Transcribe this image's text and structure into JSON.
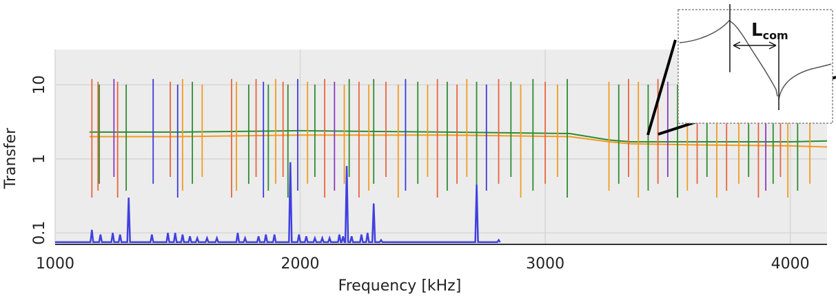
{
  "chart_data": {
    "type": "line",
    "title": "",
    "xlabel": "Frequency [kHz]",
    "ylabel": "Transfer",
    "xlim": [
      1000,
      4150
    ],
    "ylim": [
      0.07,
      30
    ],
    "yscale": "log",
    "grid": true,
    "x_ticks": [
      {
        "value": 1000,
        "label": "1000"
      },
      {
        "value": 2000,
        "label": "2000"
      },
      {
        "value": 3000,
        "label": "3000"
      },
      {
        "value": 4000,
        "label": "4000"
      }
    ],
    "y_ticks": [
      {
        "value": 10,
        "label": "10"
      },
      {
        "value": 1,
        "label": "1"
      },
      {
        "value": 0.1,
        "label": "0.1"
      }
    ],
    "baselines": [
      {
        "name": "",
        "color": "#f29a1f",
        "points": [
          [
            1140,
            2.0
          ],
          [
            1500,
            2.0
          ],
          [
            2000,
            2.1
          ],
          [
            2600,
            2.1
          ],
          [
            3100,
            2.0
          ],
          [
            3260,
            1.7
          ],
          [
            3350,
            1.6
          ],
          [
            3600,
            1.55
          ],
          [
            4000,
            1.5
          ],
          [
            4150,
            1.45
          ]
        ]
      },
      {
        "name": "",
        "color": "#2e8b2e",
        "points": [
          [
            1140,
            2.3
          ],
          [
            1500,
            2.3
          ],
          [
            2000,
            2.4
          ],
          [
            2600,
            2.3
          ],
          [
            3100,
            2.2
          ],
          [
            3260,
            1.8
          ],
          [
            3350,
            1.7
          ],
          [
            3600,
            1.7
          ],
          [
            4000,
            1.7
          ],
          [
            4150,
            1.75
          ]
        ]
      }
    ],
    "resonances": [
      {
        "x": 1150,
        "color": "#e8643c"
      },
      {
        "x": 1175,
        "color": "#e8643c"
      },
      {
        "x": 1180,
        "color": "#2e8b2e"
      },
      {
        "x": 1240,
        "color": "#8a3ab9"
      },
      {
        "x": 1255,
        "color": "#e8643c"
      },
      {
        "x": 1290,
        "color": "#2e8b2e"
      },
      {
        "x": 1400,
        "color": "#3b3bd9"
      },
      {
        "x": 1470,
        "color": "#e8643c"
      },
      {
        "x": 1500,
        "color": "#3b3bd9"
      },
      {
        "x": 1520,
        "color": "#f29a1f"
      },
      {
        "x": 1560,
        "color": "#2e8b2e"
      },
      {
        "x": 1600,
        "color": "#f29a1f"
      },
      {
        "x": 1720,
        "color": "#e8643c"
      },
      {
        "x": 1740,
        "color": "#f29a1f"
      },
      {
        "x": 1790,
        "color": "#2e8b2e"
      },
      {
        "x": 1820,
        "color": "#e8643c"
      },
      {
        "x": 1850,
        "color": "#3b3bd9"
      },
      {
        "x": 1870,
        "color": "#2e8b2e"
      },
      {
        "x": 1900,
        "color": "#f29a1f"
      },
      {
        "x": 1930,
        "color": "#e8643c"
      },
      {
        "x": 1950,
        "color": "#2e8b2e"
      },
      {
        "x": 1990,
        "color": "#3b3bd9"
      },
      {
        "x": 2030,
        "color": "#f29a1f"
      },
      {
        "x": 2060,
        "color": "#2e8b2e"
      },
      {
        "x": 2100,
        "color": "#e8643c"
      },
      {
        "x": 2140,
        "color": "#8a3ab9"
      },
      {
        "x": 2180,
        "color": "#f29a1f"
      },
      {
        "x": 2200,
        "color": "#2e8b2e"
      },
      {
        "x": 2240,
        "color": "#e8643c"
      },
      {
        "x": 2280,
        "color": "#f29a1f"
      },
      {
        "x": 2300,
        "color": "#2e8b2e"
      },
      {
        "x": 2350,
        "color": "#e8643c"
      },
      {
        "x": 2400,
        "color": "#f29a1f"
      },
      {
        "x": 2430,
        "color": "#3b3bd9"
      },
      {
        "x": 2480,
        "color": "#2e8b2e"
      },
      {
        "x": 2520,
        "color": "#f29a1f"
      },
      {
        "x": 2560,
        "color": "#e8643c"
      },
      {
        "x": 2600,
        "color": "#2e8b2e"
      },
      {
        "x": 2640,
        "color": "#e8643c"
      },
      {
        "x": 2680,
        "color": "#f29a1f"
      },
      {
        "x": 2720,
        "color": "#2e8b2e"
      },
      {
        "x": 2760,
        "color": "#3b3bd9"
      },
      {
        "x": 2810,
        "color": "#e8643c"
      },
      {
        "x": 2860,
        "color": "#2e8b2e"
      },
      {
        "x": 2900,
        "color": "#f29a1f"
      },
      {
        "x": 2950,
        "color": "#2e8b2e"
      },
      {
        "x": 3000,
        "color": "#e8643c"
      },
      {
        "x": 3050,
        "color": "#f29a1f"
      },
      {
        "x": 3090,
        "color": "#2e8b2e"
      },
      {
        "x": 3260,
        "color": "#f29a1f"
      },
      {
        "x": 3300,
        "color": "#2e8b2e"
      },
      {
        "x": 3340,
        "color": "#e8643c"
      },
      {
        "x": 3380,
        "color": "#f29a1f"
      },
      {
        "x": 3420,
        "color": "#2e8b2e"
      },
      {
        "x": 3460,
        "color": "#e8643c"
      },
      {
        "x": 3500,
        "color": "#8a3ab9"
      },
      {
        "x": 3540,
        "color": "#2e8b2e"
      },
      {
        "x": 3580,
        "color": "#f29a1f"
      },
      {
        "x": 3620,
        "color": "#e8643c"
      },
      {
        "x": 3660,
        "color": "#2e8b2e"
      },
      {
        "x": 3700,
        "color": "#f29a1f"
      },
      {
        "x": 3740,
        "color": "#e8643c"
      },
      {
        "x": 3790,
        "color": "#f29a1f"
      },
      {
        "x": 3830,
        "color": "#2e8b2e"
      },
      {
        "x": 3870,
        "color": "#e8643c"
      },
      {
        "x": 3900,
        "color": "#8a3ab9"
      },
      {
        "x": 3930,
        "color": "#2e8b2e"
      },
      {
        "x": 3960,
        "color": "#e8643c"
      },
      {
        "x": 3990,
        "color": "#f29a1f"
      },
      {
        "x": 4030,
        "color": "#2e8b2e"
      },
      {
        "x": 4080,
        "color": "#f29a1f"
      }
    ],
    "blue_series": {
      "name": "",
      "color": "#4040e0",
      "baseline": 0.075,
      "peaks": [
        {
          "x": 1150,
          "y": 0.11
        },
        {
          "x": 1185,
          "y": 0.095
        },
        {
          "x": 1235,
          "y": 0.1
        },
        {
          "x": 1265,
          "y": 0.095
        },
        {
          "x": 1300,
          "y": 0.3
        },
        {
          "x": 1395,
          "y": 0.095
        },
        {
          "x": 1460,
          "y": 0.1
        },
        {
          "x": 1490,
          "y": 0.1
        },
        {
          "x": 1520,
          "y": 0.095
        },
        {
          "x": 1550,
          "y": 0.09
        },
        {
          "x": 1580,
          "y": 0.085
        },
        {
          "x": 1620,
          "y": 0.085
        },
        {
          "x": 1660,
          "y": 0.085
        },
        {
          "x": 1745,
          "y": 0.1
        },
        {
          "x": 1775,
          "y": 0.085
        },
        {
          "x": 1830,
          "y": 0.09
        },
        {
          "x": 1860,
          "y": 0.095
        },
        {
          "x": 1895,
          "y": 0.095
        },
        {
          "x": 1960,
          "y": 0.9
        },
        {
          "x": 1995,
          "y": 0.095
        },
        {
          "x": 2025,
          "y": 0.09
        },
        {
          "x": 2060,
          "y": 0.085
        },
        {
          "x": 2090,
          "y": 0.085
        },
        {
          "x": 2120,
          "y": 0.085
        },
        {
          "x": 2160,
          "y": 0.095
        },
        {
          "x": 2175,
          "y": 0.09
        },
        {
          "x": 2190,
          "y": 0.8
        },
        {
          "x": 2210,
          "y": 0.09
        },
        {
          "x": 2250,
          "y": 0.095
        },
        {
          "x": 2275,
          "y": 0.1
        },
        {
          "x": 2300,
          "y": 0.25
        },
        {
          "x": 2330,
          "y": 0.08
        },
        {
          "x": 2720,
          "y": 0.45
        },
        {
          "x": 2810,
          "y": 0.08
        }
      ]
    },
    "inset": {
      "label_main": "L",
      "label_sub": "com"
    }
  }
}
